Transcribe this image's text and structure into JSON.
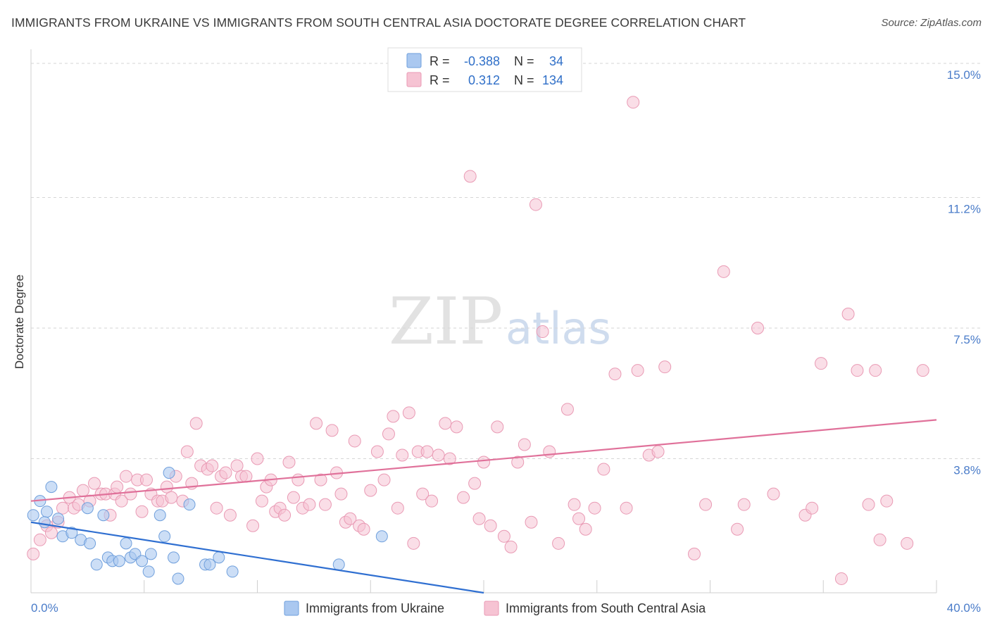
{
  "header": {
    "title": "IMMIGRANTS FROM UKRAINE VS IMMIGRANTS FROM SOUTH CENTRAL ASIA DOCTORATE DEGREE CORRELATION CHART",
    "source": "Source: ZipAtlas.com"
  },
  "watermark": {
    "part1": "ZIP",
    "part2": "atlas"
  },
  "legend": {
    "rows": [
      {
        "r_label": "R =",
        "r_value": "-0.388",
        "n_label": "N =",
        "n_value": "34"
      },
      {
        "r_label": "R =",
        "r_value": "0.312",
        "n_label": "N =",
        "n_value": "134"
      }
    ]
  },
  "bottom_legend": {
    "items": [
      "Immigrants from Ukraine",
      "Immigrants from South Central Asia"
    ]
  },
  "colors": {
    "ukraine_fill": "#aac8f0",
    "ukraine_stroke": "#6f9fdc",
    "ukraine_line": "#2f6fd1",
    "sca_fill": "#f6c3d3",
    "sca_stroke": "#e99ab4",
    "sca_line": "#e0719a",
    "grid": "#d6d6d6",
    "tick_label": "#4a7cc9"
  },
  "chart_data": {
    "type": "scatter",
    "title": "IMMIGRANTS FROM UKRAINE VS IMMIGRANTS FROM SOUTH CENTRAL ASIA DOCTORATE DEGREE CORRELATION CHART",
    "xlabel": "",
    "ylabel": "Doctorate Degree",
    "xlim": [
      0,
      40
    ],
    "ylim": [
      0,
      15.4
    ],
    "x_tick_labels": [
      "0.0%",
      "40.0%"
    ],
    "y_ticks": [
      3.8,
      7.5,
      11.2,
      15.0
    ],
    "y_tick_labels": [
      "3.8%",
      "7.5%",
      "11.2%",
      "15.0%"
    ],
    "grid": true,
    "legend_position": "top-center",
    "series": [
      {
        "name": "Immigrants from Ukraine",
        "r": -0.388,
        "n": 34,
        "trend": {
          "x": [
            0,
            20
          ],
          "y": [
            2.0,
            0.0
          ]
        },
        "points": [
          [
            0.1,
            2.2
          ],
          [
            0.4,
            2.6
          ],
          [
            0.7,
            2.3
          ],
          [
            0.9,
            3.0
          ],
          [
            1.2,
            2.1
          ],
          [
            1.4,
            1.6
          ],
          [
            1.8,
            1.7
          ],
          [
            2.2,
            1.5
          ],
          [
            2.5,
            2.4
          ],
          [
            2.6,
            1.4
          ],
          [
            2.9,
            0.8
          ],
          [
            3.2,
            2.2
          ],
          [
            3.4,
            1.0
          ],
          [
            3.6,
            0.9
          ],
          [
            3.9,
            0.9
          ],
          [
            4.2,
            1.4
          ],
          [
            4.4,
            1.0
          ],
          [
            4.6,
            1.1
          ],
          [
            4.9,
            0.9
          ],
          [
            5.2,
            0.6
          ],
          [
            5.3,
            1.1
          ],
          [
            5.7,
            2.2
          ],
          [
            5.9,
            1.6
          ],
          [
            6.3,
            1.0
          ],
          [
            6.5,
            0.4
          ],
          [
            6.1,
            3.4
          ],
          [
            7.0,
            2.5
          ],
          [
            7.7,
            0.8
          ],
          [
            7.9,
            0.8
          ],
          [
            8.3,
            1.0
          ],
          [
            8.9,
            0.6
          ],
          [
            13.6,
            0.8
          ],
          [
            15.5,
            1.6
          ],
          [
            0.6,
            2.0
          ]
        ]
      },
      {
        "name": "Immigrants from South Central Asia",
        "r": 0.312,
        "n": 134,
        "trend": {
          "x": [
            0,
            40
          ],
          "y": [
            2.6,
            4.9
          ]
        },
        "points": [
          [
            0.1,
            1.1
          ],
          [
            0.4,
            1.5
          ],
          [
            0.7,
            1.9
          ],
          [
            0.9,
            1.7
          ],
          [
            1.2,
            2.0
          ],
          [
            1.4,
            2.4
          ],
          [
            1.7,
            2.7
          ],
          [
            1.9,
            2.4
          ],
          [
            2.1,
            2.5
          ],
          [
            2.3,
            2.9
          ],
          [
            2.6,
            2.6
          ],
          [
            2.8,
            3.1
          ],
          [
            3.1,
            2.8
          ],
          [
            3.3,
            2.8
          ],
          [
            3.5,
            2.2
          ],
          [
            3.7,
            2.8
          ],
          [
            3.8,
            3.0
          ],
          [
            4.0,
            2.6
          ],
          [
            4.2,
            3.3
          ],
          [
            4.4,
            2.8
          ],
          [
            4.7,
            3.2
          ],
          [
            4.9,
            2.3
          ],
          [
            5.1,
            3.2
          ],
          [
            5.3,
            2.8
          ],
          [
            5.6,
            2.6
          ],
          [
            5.8,
            2.6
          ],
          [
            6.0,
            3.0
          ],
          [
            6.2,
            2.7
          ],
          [
            6.4,
            3.3
          ],
          [
            6.7,
            2.6
          ],
          [
            6.9,
            4.0
          ],
          [
            7.1,
            3.1
          ],
          [
            7.3,
            4.8
          ],
          [
            7.5,
            3.6
          ],
          [
            7.8,
            3.5
          ],
          [
            8.0,
            3.6
          ],
          [
            8.2,
            2.4
          ],
          [
            8.4,
            3.3
          ],
          [
            8.6,
            3.4
          ],
          [
            8.8,
            2.2
          ],
          [
            9.1,
            3.6
          ],
          [
            9.3,
            3.3
          ],
          [
            9.5,
            3.3
          ],
          [
            9.8,
            1.9
          ],
          [
            10.0,
            3.8
          ],
          [
            10.2,
            2.6
          ],
          [
            10.4,
            3.0
          ],
          [
            10.6,
            3.2
          ],
          [
            10.8,
            2.3
          ],
          [
            11.0,
            2.4
          ],
          [
            11.2,
            2.2
          ],
          [
            11.4,
            3.7
          ],
          [
            11.6,
            2.7
          ],
          [
            11.8,
            3.2
          ],
          [
            12.0,
            2.4
          ],
          [
            12.3,
            2.5
          ],
          [
            12.6,
            4.8
          ],
          [
            12.8,
            3.2
          ],
          [
            13.0,
            2.5
          ],
          [
            13.3,
            4.6
          ],
          [
            13.5,
            3.4
          ],
          [
            13.7,
            2.8
          ],
          [
            13.9,
            2.0
          ],
          [
            14.1,
            2.1
          ],
          [
            14.3,
            4.3
          ],
          [
            14.5,
            1.9
          ],
          [
            14.7,
            1.8
          ],
          [
            15.0,
            2.9
          ],
          [
            15.3,
            4.0
          ],
          [
            15.6,
            3.2
          ],
          [
            15.8,
            4.5
          ],
          [
            16.0,
            5.0
          ],
          [
            16.2,
            2.4
          ],
          [
            16.4,
            3.9
          ],
          [
            16.7,
            5.1
          ],
          [
            16.9,
            1.4
          ],
          [
            17.1,
            4.0
          ],
          [
            17.3,
            2.8
          ],
          [
            17.5,
            4.0
          ],
          [
            17.7,
            2.6
          ],
          [
            18.0,
            3.9
          ],
          [
            18.3,
            4.8
          ],
          [
            18.5,
            3.8
          ],
          [
            18.8,
            4.7
          ],
          [
            19.1,
            2.7
          ],
          [
            19.4,
            11.8
          ],
          [
            19.6,
            3.1
          ],
          [
            19.8,
            2.1
          ],
          [
            20.0,
            3.7
          ],
          [
            20.3,
            1.9
          ],
          [
            20.6,
            4.7
          ],
          [
            20.9,
            1.6
          ],
          [
            21.2,
            1.3
          ],
          [
            21.5,
            3.7
          ],
          [
            21.8,
            4.2
          ],
          [
            22.1,
            2.0
          ],
          [
            22.3,
            11.0
          ],
          [
            22.6,
            7.4
          ],
          [
            22.9,
            4.0
          ],
          [
            23.3,
            1.4
          ],
          [
            23.7,
            5.2
          ],
          [
            24.0,
            2.5
          ],
          [
            24.2,
            2.1
          ],
          [
            24.5,
            1.8
          ],
          [
            24.9,
            2.4
          ],
          [
            25.3,
            3.5
          ],
          [
            25.8,
            6.2
          ],
          [
            26.3,
            2.4
          ],
          [
            26.6,
            13.9
          ],
          [
            26.8,
            6.3
          ],
          [
            27.3,
            3.9
          ],
          [
            27.7,
            4.0
          ],
          [
            28.0,
            6.4
          ],
          [
            29.3,
            1.1
          ],
          [
            29.8,
            2.5
          ],
          [
            30.6,
            9.1
          ],
          [
            31.2,
            1.8
          ],
          [
            31.5,
            2.5
          ],
          [
            32.1,
            7.5
          ],
          [
            32.8,
            2.8
          ],
          [
            34.2,
            2.2
          ],
          [
            34.5,
            2.4
          ],
          [
            34.9,
            6.5
          ],
          [
            35.8,
            0.4
          ],
          [
            36.1,
            7.9
          ],
          [
            36.5,
            6.3
          ],
          [
            37.0,
            2.5
          ],
          [
            37.3,
            6.3
          ],
          [
            37.5,
            1.5
          ],
          [
            37.8,
            2.6
          ],
          [
            38.7,
            1.4
          ],
          [
            39.4,
            6.3
          ]
        ]
      }
    ]
  }
}
